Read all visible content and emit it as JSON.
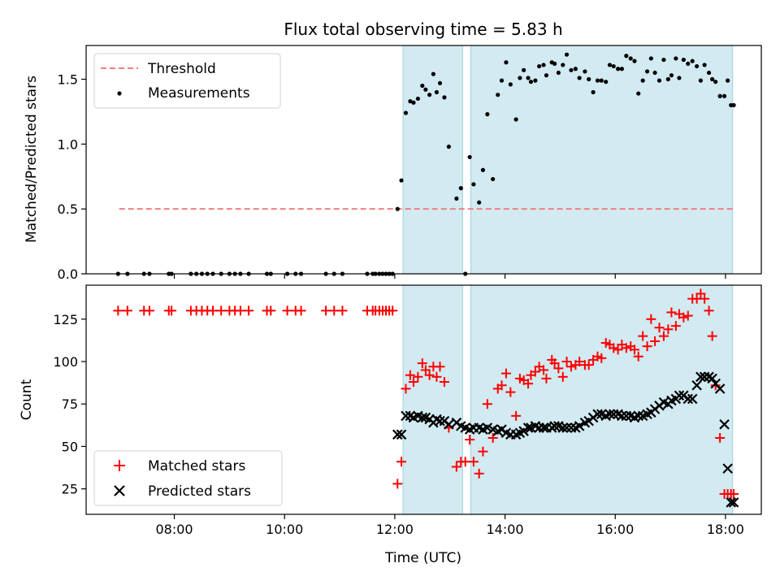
{
  "chart_data": {
    "title": "Flux total observing time = 5.83 h",
    "xlabel": "Time (UTC)",
    "x_unit": "hours UTC",
    "xlim": [
      6.4,
      18.65
    ],
    "xticks": [
      {
        "value": 8,
        "label": "08:00"
      },
      {
        "value": 10,
        "label": "10:00"
      },
      {
        "value": 12,
        "label": "12:00"
      },
      {
        "value": 14,
        "label": "14:00"
      },
      {
        "value": 16,
        "label": "16:00"
      },
      {
        "value": 18,
        "label": "18:00"
      }
    ],
    "shaded_intervals": [
      [
        12.15,
        13.23
      ],
      [
        13.38,
        18.13
      ]
    ],
    "shade_color": "#add8e6",
    "panels": [
      {
        "type": "scatter",
        "ylabel": "Matched/Predicted stars",
        "ylim": [
          0,
          1.76
        ],
        "yticks": [
          {
            "value": 0,
            "label": "0.0"
          },
          {
            "value": 0.5,
            "label": "0.5"
          },
          {
            "value": 1.0,
            "label": "1.0"
          },
          {
            "value": 1.5,
            "label": "1.5"
          }
        ],
        "legend_position": "upper-left",
        "threshold": {
          "name": "Threshold",
          "value": 0.5,
          "x_range": [
            7.0,
            18.13
          ],
          "color": "#f08080"
        },
        "series": [
          {
            "name": "Measurements",
            "marker": "dot",
            "color": "#000000",
            "x": [
              6.98,
              7.15,
              7.45,
              7.55,
              7.9,
              7.95,
              8.3,
              8.4,
              8.5,
              8.6,
              8.7,
              8.85,
              9.0,
              9.1,
              9.2,
              9.35,
              9.68,
              9.75,
              10.05,
              10.2,
              10.3,
              10.75,
              10.9,
              11.05,
              11.5,
              11.6,
              11.65,
              11.72,
              11.78,
              11.84,
              11.9,
              11.96,
              12.05,
              12.12,
              12.2,
              12.28,
              12.34,
              12.42,
              12.5,
              12.56,
              12.63,
              12.7,
              12.76,
              12.82,
              12.9,
              12.98,
              13.12,
              13.2,
              13.28,
              13.36,
              13.43,
              13.53,
              13.6,
              13.68,
              13.78,
              13.87,
              13.94,
              14.02,
              14.1,
              14.2,
              14.27,
              14.34,
              14.42,
              14.47,
              14.55,
              14.62,
              14.7,
              14.75,
              14.85,
              14.9,
              14.97,
              15.05,
              15.12,
              15.2,
              15.28,
              15.35,
              15.45,
              15.52,
              15.6,
              15.68,
              15.75,
              15.83,
              15.9,
              15.97,
              16.05,
              16.12,
              16.2,
              16.28,
              16.35,
              16.42,
              16.5,
              16.58,
              16.65,
              16.72,
              16.8,
              16.88,
              16.96,
              17.02,
              17.1,
              17.16,
              17.24,
              17.32,
              17.4,
              17.48,
              17.55,
              17.62,
              17.7,
              17.76,
              17.82,
              17.9,
              17.98,
              18.04,
              18.1,
              18.15
            ],
            "y": [
              0.0,
              0.0,
              0.0,
              0.0,
              0.0,
              0.0,
              0.0,
              0.0,
              0.0,
              0.0,
              0.0,
              0.0,
              0.0,
              0.0,
              0.0,
              0.0,
              0.0,
              0.0,
              0.0,
              0.0,
              0.0,
              0.0,
              0.0,
              0.0,
              0.0,
              0.0,
              0.0,
              0.0,
              0.0,
              0.0,
              0.0,
              0.0,
              0.5,
              0.72,
              1.24,
              1.33,
              1.32,
              1.35,
              1.45,
              1.42,
              1.38,
              1.54,
              1.4,
              1.47,
              1.36,
              0.98,
              0.58,
              0.66,
              0.0,
              0.9,
              0.69,
              0.55,
              0.8,
              1.23,
              0.73,
              1.38,
              1.49,
              1.63,
              1.46,
              1.19,
              1.51,
              1.57,
              1.51,
              1.48,
              1.49,
              1.6,
              1.61,
              1.53,
              1.63,
              1.62,
              1.55,
              1.61,
              1.69,
              1.57,
              1.58,
              1.51,
              1.56,
              1.5,
              1.4,
              1.49,
              1.49,
              1.48,
              1.61,
              1.6,
              1.58,
              1.58,
              1.68,
              1.66,
              1.64,
              1.39,
              1.49,
              1.56,
              1.66,
              1.55,
              1.49,
              1.65,
              1.5,
              1.53,
              1.66,
              1.51,
              1.65,
              1.62,
              1.64,
              1.6,
              1.49,
              1.61,
              1.55,
              1.5,
              1.48,
              1.37,
              1.37,
              1.49,
              1.3,
              1.3
            ]
          }
        ]
      },
      {
        "type": "scatter",
        "ylabel": "Count",
        "ylim": [
          10,
          145
        ],
        "yticks": [
          {
            "value": 25,
            "label": "25"
          },
          {
            "value": 50,
            "label": "50"
          },
          {
            "value": 75,
            "label": "75"
          },
          {
            "value": 100,
            "label": "100"
          },
          {
            "value": 125,
            "label": "125"
          }
        ],
        "legend_position": "lower-left",
        "series": [
          {
            "name": "Matched stars",
            "marker": "plus",
            "color": "#ff0000",
            "x": [
              6.98,
              7.15,
              7.45,
              7.55,
              7.9,
              7.95,
              8.3,
              8.4,
              8.5,
              8.6,
              8.7,
              8.85,
              9.0,
              9.1,
              9.2,
              9.35,
              9.68,
              9.75,
              10.05,
              10.2,
              10.3,
              10.75,
              10.9,
              11.05,
              11.5,
              11.6,
              11.65,
              11.72,
              11.78,
              11.84,
              11.9,
              11.96,
              12.05,
              12.12,
              12.2,
              12.28,
              12.34,
              12.42,
              12.5,
              12.56,
              12.63,
              12.7,
              12.76,
              12.82,
              12.9,
              12.98,
              13.12,
              13.2,
              13.28,
              13.36,
              13.43,
              13.53,
              13.6,
              13.68,
              13.78,
              13.87,
              13.94,
              14.02,
              14.1,
              14.2,
              14.27,
              14.34,
              14.42,
              14.47,
              14.55,
              14.62,
              14.7,
              14.75,
              14.85,
              14.9,
              14.97,
              15.05,
              15.12,
              15.2,
              15.28,
              15.35,
              15.45,
              15.52,
              15.6,
              15.68,
              15.75,
              15.83,
              15.9,
              15.97,
              16.05,
              16.12,
              16.2,
              16.28,
              16.35,
              16.42,
              16.5,
              16.58,
              16.65,
              16.72,
              16.8,
              16.88,
              16.96,
              17.02,
              17.1,
              17.16,
              17.24,
              17.32,
              17.4,
              17.48,
              17.55,
              17.62,
              17.7,
              17.76,
              17.82,
              17.9,
              17.98,
              18.04,
              18.1,
              18.15
            ],
            "y": [
              130,
              130,
              130,
              130,
              130,
              130,
              130,
              130,
              130,
              130,
              130,
              130,
              130,
              130,
              130,
              130,
              130,
              130,
              130,
              130,
              130,
              130,
              130,
              130,
              130,
              130,
              130,
              130,
              130,
              130,
              130,
              130,
              28,
              41,
              84,
              92,
              88,
              91,
              99,
              95,
              92,
              97,
              91,
              97,
              88,
              61,
              38,
              41,
              41,
              54,
              41,
              34,
              47,
              75,
              55,
              84,
              86,
              93,
              82,
              68,
              90,
              89,
              87,
              92,
              94,
              97,
              95,
              90,
              101,
              99,
              96,
              91,
              100,
              97,
              98,
              100,
              98,
              98,
              101,
              103,
              102,
              111,
              110,
              108,
              107,
              110,
              108,
              109,
              107,
              103,
              115,
              109,
              125,
              112,
              120,
              115,
              119,
              129,
              121,
              128,
              126,
              127,
              137,
              137,
              140,
              137,
              130,
              115,
              86,
              55,
              22,
              22,
              22,
              22
            ],
            "_note": "last points cluster near 18.1"
          },
          {
            "name": "Predicted stars",
            "marker": "x",
            "color": "#000000",
            "x": [
              12.05,
              12.12,
              12.2,
              12.28,
              12.34,
              12.42,
              12.5,
              12.56,
              12.63,
              12.7,
              12.76,
              12.82,
              12.9,
              12.98,
              13.12,
              13.2,
              13.28,
              13.36,
              13.43,
              13.53,
              13.6,
              13.68,
              13.78,
              13.87,
              13.94,
              14.02,
              14.1,
              14.2,
              14.27,
              14.34,
              14.42,
              14.47,
              14.55,
              14.62,
              14.7,
              14.75,
              14.85,
              14.9,
              14.97,
              15.05,
              15.12,
              15.2,
              15.28,
              15.35,
              15.45,
              15.52,
              15.6,
              15.68,
              15.75,
              15.83,
              15.9,
              15.97,
              16.05,
              16.12,
              16.2,
              16.28,
              16.35,
              16.42,
              16.5,
              16.58,
              16.65,
              16.72,
              16.8,
              16.88,
              16.96,
              17.02,
              17.1,
              17.16,
              17.24,
              17.32,
              17.4,
              17.48,
              17.55,
              17.62,
              17.7,
              17.76,
              17.82,
              17.9,
              17.98,
              18.04,
              18.1,
              18.15
            ],
            "y": [
              57,
              57,
              68,
              68,
              67,
              68,
              67,
              67,
              66,
              64,
              66,
              65,
              65,
              63,
              64,
              62,
              61,
              60,
              61,
              61,
              60,
              61,
              60,
              59,
              60,
              58,
              57,
              57,
              58,
              59,
              61,
              61,
              62,
              61,
              61,
              61,
              61,
              62,
              62,
              61,
              61,
              61,
              61,
              62,
              64,
              65,
              67,
              69,
              69,
              68,
              69,
              69,
              69,
              68,
              68,
              68,
              67,
              68,
              68,
              69,
              70,
              72,
              74,
              76,
              75,
              77,
              78,
              80,
              80,
              78,
              78,
              86,
              91,
              91,
              91,
              90,
              87,
              84,
              63,
              37,
              17,
              17
            ]
          }
        ]
      }
    ]
  }
}
